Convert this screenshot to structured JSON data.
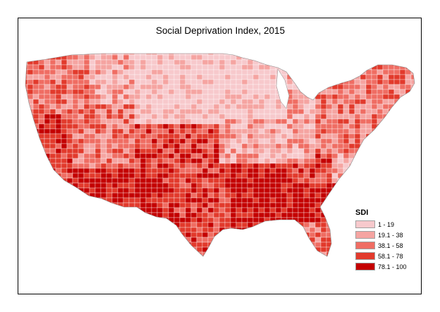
{
  "title": "Social Deprivation Index, 2015",
  "legend": {
    "title": "SDI",
    "classes": [
      {
        "label": "1 - 19",
        "color": "#f7c9cc"
      },
      {
        "label": "19.1 - 38",
        "color": "#f5a4a1"
      },
      {
        "label": "38.1 - 58",
        "color": "#ef6d63"
      },
      {
        "label": "58.1 - 78",
        "color": "#e23a2c"
      },
      {
        "label": "78.1 - 100",
        "color": "#c40000"
      }
    ]
  },
  "map": {
    "subject": "contiguous United States counties",
    "regions": [
      {
        "name": "pacific-northwest",
        "class": 2
      },
      {
        "name": "northern-rockies",
        "class": 1
      },
      {
        "name": "great-plains-north",
        "class": 0
      },
      {
        "name": "upper-midwest",
        "class": 0
      },
      {
        "name": "midwest",
        "class": 1
      },
      {
        "name": "northeast",
        "class": 2
      },
      {
        "name": "california",
        "class": 3
      },
      {
        "name": "great-basin",
        "class": 2
      },
      {
        "name": "southwest",
        "class": 4
      },
      {
        "name": "texas",
        "class": 3
      },
      {
        "name": "south-central",
        "class": 3
      },
      {
        "name": "deep-south",
        "class": 4
      },
      {
        "name": "appalachia",
        "class": 3
      },
      {
        "name": "southeast-coast",
        "class": 4
      },
      {
        "name": "florida",
        "class": 2
      }
    ]
  }
}
